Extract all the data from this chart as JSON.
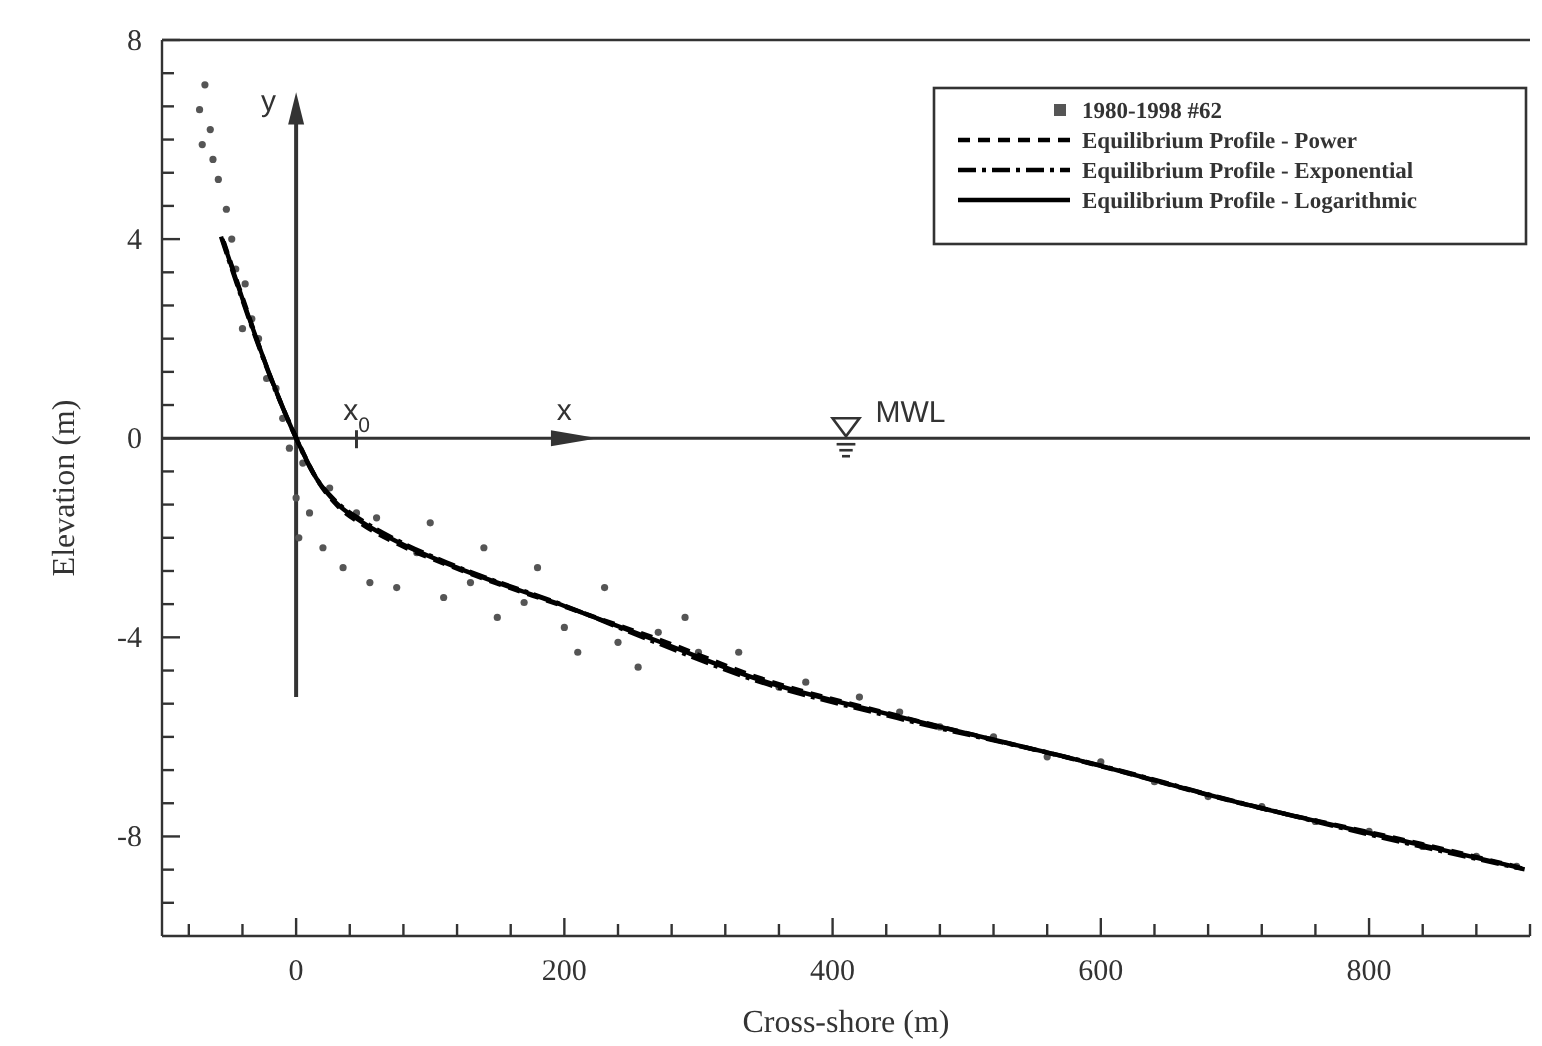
{
  "chart_data": {
    "type": "line",
    "xlabel": "Cross-shore (m)",
    "ylabel": "Elevation (m)",
    "xlim": [
      -100,
      920
    ],
    "ylim": [
      -10,
      8
    ],
    "xticks": [
      {
        "value": -80,
        "label": null
      },
      {
        "value": -40,
        "label": null
      },
      0,
      {
        "value": 40,
        "label": null
      },
      {
        "value": 80,
        "label": null
      },
      {
        "value": 120,
        "label": null
      },
      {
        "value": 160,
        "label": null
      },
      200,
      {
        "value": 240,
        "label": null
      },
      {
        "value": 280,
        "label": null
      },
      {
        "value": 320,
        "label": null
      },
      {
        "value": 360,
        "label": null
      },
      400,
      {
        "value": 440,
        "label": null
      },
      {
        "value": 480,
        "label": null
      },
      {
        "value": 520,
        "label": null
      },
      {
        "value": 560,
        "label": null
      },
      600,
      {
        "value": 640,
        "label": null
      },
      {
        "value": 680,
        "label": null
      },
      {
        "value": 720,
        "label": null
      },
      {
        "value": 760,
        "label": null
      },
      800,
      {
        "value": 840,
        "label": null
      },
      {
        "value": 880,
        "label": null
      },
      {
        "value": 920,
        "label": null
      }
    ],
    "yticks": [
      {
        "value": -9.333,
        "label": null
      },
      {
        "value": -8.667,
        "label": null
      },
      -8,
      {
        "value": -7.333,
        "label": null
      },
      {
        "value": -6.667,
        "label": null
      },
      {
        "value": -6,
        "label": null
      },
      {
        "value": -5.333,
        "label": null
      },
      {
        "value": -4.667,
        "label": null
      },
      -4,
      {
        "value": -3.333,
        "label": null
      },
      {
        "value": -2.667,
        "label": null
      },
      {
        "value": -2,
        "label": null
      },
      {
        "value": -1.333,
        "label": null
      },
      {
        "value": -0.667,
        "label": null
      },
      0,
      {
        "value": 0.667,
        "label": null
      },
      {
        "value": 1.333,
        "label": null
      },
      {
        "value": 2,
        "label": null
      },
      {
        "value": 2.667,
        "label": null
      },
      {
        "value": 3.333,
        "label": null
      },
      4,
      {
        "value": 4.667,
        "label": null
      },
      {
        "value": 5.333,
        "label": null
      },
      {
        "value": 6,
        "label": null
      },
      {
        "value": 6.667,
        "label": null
      },
      {
        "value": 7.333,
        "label": null
      },
      8
    ],
    "legend": "top right",
    "series": [
      {
        "name": "1980-1998 #62",
        "type": "scatter",
        "marker": "circle",
        "color": "#555555",
        "x": [
          -72,
          -68,
          -64,
          -70,
          -58,
          -62,
          -52,
          -48,
          -45,
          -38,
          -33,
          -28,
          -40,
          -22,
          -15,
          -10,
          -5,
          5,
          0,
          2,
          10,
          20,
          25,
          35,
          45,
          55,
          60,
          75,
          90,
          100,
          110,
          130,
          140,
          150,
          170,
          180,
          200,
          210,
          230,
          240,
          255,
          270,
          290,
          300,
          330,
          360,
          380,
          420,
          450,
          480,
          520,
          560,
          600,
          640,
          680,
          720,
          760,
          800,
          840,
          880,
          910
        ],
        "values": [
          6.6,
          7.1,
          6.2,
          5.9,
          5.2,
          5.6,
          4.6,
          4.0,
          3.4,
          3.1,
          2.4,
          2.0,
          2.2,
          1.2,
          1.0,
          0.4,
          -0.2,
          -0.5,
          -1.2,
          -2.0,
          -1.5,
          -2.2,
          -1.0,
          -2.6,
          -1.5,
          -2.9,
          -1.6,
          -3.0,
          -2.3,
          -1.7,
          -3.2,
          -2.9,
          -2.2,
          -3.6,
          -3.3,
          -2.6,
          -3.8,
          -4.3,
          -3.0,
          -4.1,
          -4.6,
          -3.9,
          -3.6,
          -4.3,
          -4.3,
          -5.0,
          -4.9,
          -5.2,
          -5.5,
          -5.8,
          -6.0,
          -6.4,
          -6.5,
          -6.9,
          -7.2,
          -7.4,
          -7.7,
          -7.9,
          -8.2,
          -8.4,
          -8.6
        ]
      },
      {
        "name": "Equilibrium Profile - Power",
        "line_style": "dashed",
        "color": "#000000",
        "x": [
          -54,
          -39,
          -19,
          2,
          16,
          31,
          51,
          78,
          122,
          202,
          272,
          346,
          452,
          593,
          702,
          839,
          912
        ],
        "values": [
          3.95,
          2.75,
          1.22,
          -0.1,
          -0.85,
          -1.36,
          -1.76,
          -2.15,
          -2.64,
          -3.4,
          -4.06,
          -4.82,
          -5.6,
          -6.54,
          -7.32,
          -8.15,
          -8.62
        ]
      },
      {
        "name": "Equilibrium Profile - Exponential",
        "line_style": "dashdot",
        "color": "#000000",
        "x": [
          -56,
          -41,
          -21,
          -2,
          14,
          29,
          49,
          76,
          118,
          198,
          268,
          342,
          448,
          589,
          698,
          835,
          916
        ],
        "values": [
          4.05,
          2.85,
          1.35,
          0.12,
          -0.76,
          -1.25,
          -1.65,
          -2.06,
          -2.56,
          -3.34,
          -4.1,
          -4.86,
          -5.62,
          -6.5,
          -7.28,
          -8.18,
          -8.66
        ]
      },
      {
        "name": "Equilibrium Profile - Logarithmic",
        "line_style": "solid",
        "color": "#000000",
        "x": [
          -55,
          -40,
          -20,
          0,
          15,
          30,
          50,
          77,
          120,
          200,
          270,
          344,
          450,
          591,
          700,
          837,
          914
        ],
        "values": [
          4,
          2.8,
          1.3,
          0,
          -0.8,
          -1.3,
          -1.7,
          -2.1,
          -2.6,
          -3.37,
          -4.08,
          -4.84,
          -5.6,
          -6.52,
          -7.3,
          -8.16,
          -8.64
        ]
      }
    ],
    "ref_lines": [
      {
        "axis": "y",
        "value": 0,
        "label": "MWL",
        "color": "#333333"
      }
    ],
    "annotations": [
      "y",
      {
        "text": "x",
        "x": 200,
        "y": 0
      },
      {
        "text": "x$_{0}$",
        "x": 45,
        "y": 0
      }
    ]
  }
}
